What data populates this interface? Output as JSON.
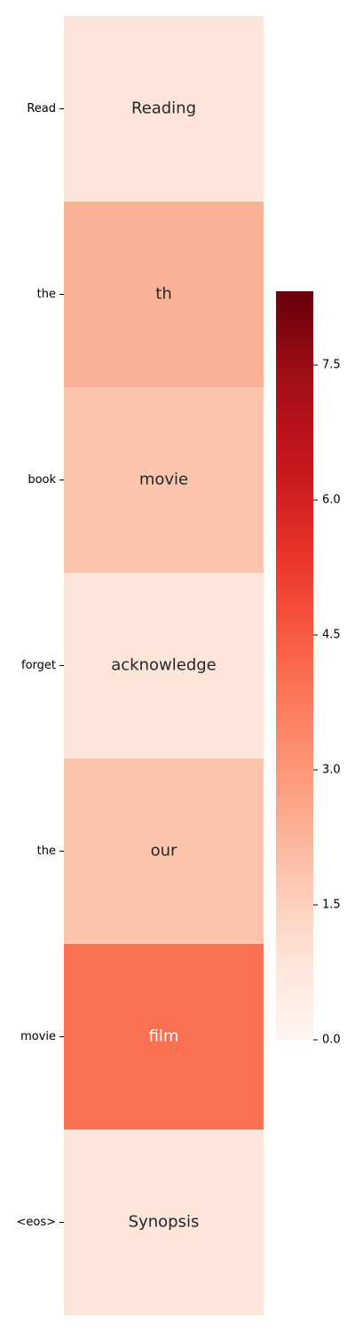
{
  "chart_data": {
    "type": "heatmap",
    "categories": [
      "Read",
      "the",
      "book",
      "forget",
      "the",
      "movie",
      "<eos>"
    ],
    "annotations": [
      "Reading",
      "th",
      "movie",
      "acknowledge",
      "our",
      "film",
      "Synopsis"
    ],
    "values": [
      0.8,
      2.3,
      1.8,
      0.8,
      1.8,
      4.0,
      0.8
    ],
    "colormap": [
      "#fff5f0",
      "#fee0d2",
      "#fcbba1",
      "#fc9272",
      "#fb6a4a",
      "#ef3b2c",
      "#cb181d",
      "#a50f15",
      "#67000d"
    ],
    "clim": [
      0,
      8.32
    ],
    "cticks": [
      {
        "value": 0,
        "label": "0.0"
      },
      1.5,
      {
        "value": 3,
        "label": "3.0"
      },
      4.5,
      {
        "value": 6,
        "label": "6.0"
      },
      7.5
    ]
  }
}
